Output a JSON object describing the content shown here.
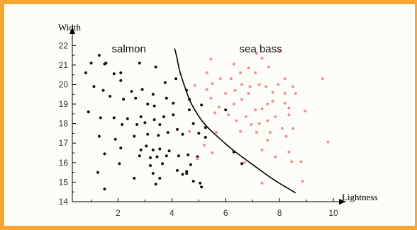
{
  "chart_data": {
    "type": "scatter",
    "title": "",
    "xlabel": "Lightness",
    "ylabel": "Width",
    "xlim": [
      0.3,
      10.0
    ],
    "ylim": [
      14,
      22.3
    ],
    "x_ticks": [
      2,
      4,
      6,
      8,
      10
    ],
    "y_ticks": [
      14,
      15,
      16,
      17,
      18,
      19,
      20,
      21,
      22
    ],
    "grid": false,
    "annotations": [
      {
        "text": "salmon",
        "x": 2.4,
        "y": 21.65
      },
      {
        "text": "sea bass",
        "x": 7.3,
        "y": 21.65
      }
    ],
    "colors": {
      "salmon": "#111111",
      "sea bass": "#f28f8f",
      "boundary": "#000000",
      "frame": "#f7a634"
    },
    "series": [
      {
        "name": "salmon",
        "points": [
          [
            1.3,
            21.5
          ],
          [
            1.0,
            21.1
          ],
          [
            1.5,
            21.05
          ],
          [
            1.55,
            21.1
          ],
          [
            0.8,
            20.6
          ],
          [
            1.85,
            20.55
          ],
          [
            2.1,
            20.6
          ],
          [
            2.8,
            21.1
          ],
          [
            3.4,
            20.9
          ],
          [
            3.75,
            20.1
          ],
          [
            2.1,
            20.2
          ],
          [
            2.2,
            19.25
          ],
          [
            2.5,
            19.65
          ],
          [
            2.9,
            19.75
          ],
          [
            2.65,
            19.3
          ],
          [
            3.1,
            19.0
          ],
          [
            3.3,
            19.5
          ],
          [
            3.35,
            18.9
          ],
          [
            4.05,
            19.05
          ],
          [
            3.8,
            19.3
          ],
          [
            1.1,
            19.9
          ],
          [
            1.45,
            19.7
          ],
          [
            1.7,
            19.4
          ],
          [
            0.9,
            18.6
          ],
          [
            1.35,
            18.3
          ],
          [
            1.85,
            18.3
          ],
          [
            2.35,
            18.25
          ],
          [
            2.85,
            18.35
          ],
          [
            2.7,
            17.95
          ],
          [
            3.0,
            18.05
          ],
          [
            2.15,
            17.95
          ],
          [
            3.35,
            18.2
          ],
          [
            3.7,
            18.35
          ],
          [
            4.05,
            18.45
          ],
          [
            3.55,
            17.95
          ],
          [
            4.2,
            17.7
          ],
          [
            4.4,
            17.45
          ],
          [
            3.85,
            17.55
          ],
          [
            3.5,
            17.4
          ],
          [
            3.1,
            17.45
          ],
          [
            2.6,
            17.35
          ],
          [
            1.3,
            17.35
          ],
          [
            1.9,
            17.2
          ],
          [
            2.1,
            16.75
          ],
          [
            2.85,
            16.65
          ],
          [
            3.05,
            16.85
          ],
          [
            3.3,
            16.65
          ],
          [
            3.55,
            16.7
          ],
          [
            3.9,
            16.6
          ],
          [
            3.8,
            16.35
          ],
          [
            4.25,
            16.35
          ],
          [
            4.6,
            16.4
          ],
          [
            4.95,
            16.3
          ],
          [
            3.2,
            16.25
          ],
          [
            3.45,
            16.3
          ],
          [
            2.8,
            16.35
          ],
          [
            1.5,
            16.45
          ],
          [
            2.05,
            15.95
          ],
          [
            3.2,
            15.85
          ],
          [
            3.65,
            15.95
          ],
          [
            4.7,
            15.9
          ],
          [
            4.55,
            15.55
          ],
          [
            4.8,
            15.05
          ],
          [
            5.1,
            14.75
          ],
          [
            3.3,
            15.45
          ],
          [
            3.55,
            15.2
          ],
          [
            2.6,
            15.2
          ],
          [
            3.4,
            14.9
          ],
          [
            1.25,
            15.5
          ],
          [
            1.5,
            14.65
          ],
          [
            5.05,
            14.95
          ],
          [
            4.55,
            15.45
          ],
          [
            4.15,
            20.3
          ],
          [
            4.55,
            19.7
          ],
          [
            4.65,
            19.25
          ],
          [
            4.65,
            18.7
          ],
          [
            5.1,
            18.95
          ],
          [
            6.0,
            18.7
          ],
          [
            4.8,
            18.0
          ],
          [
            5.25,
            17.8
          ],
          [
            5.0,
            17.5
          ],
          [
            5.25,
            17.3
          ],
          [
            6.3,
            16.55
          ],
          [
            6.6,
            15.95
          ],
          [
            4.4,
            15.4
          ],
          [
            4.2,
            15.6
          ]
        ]
      },
      {
        "name": "sea bass",
        "points": [
          [
            5.45,
            21.3
          ],
          [
            6.3,
            21.05
          ],
          [
            6.55,
            20.6
          ],
          [
            6.85,
            20.85
          ],
          [
            7.15,
            21.6
          ],
          [
            7.35,
            21.35
          ],
          [
            8.0,
            21.7
          ],
          [
            7.6,
            20.9
          ],
          [
            7.1,
            20.6
          ],
          [
            6.2,
            20.3
          ],
          [
            5.3,
            20.6
          ],
          [
            5.8,
            20.3
          ],
          [
            5.5,
            20.05
          ],
          [
            4.85,
            19.95
          ],
          [
            5.3,
            19.75
          ],
          [
            5.45,
            19.3
          ],
          [
            6.0,
            19.55
          ],
          [
            6.35,
            19.7
          ],
          [
            6.6,
            20.0
          ],
          [
            6.9,
            19.9
          ],
          [
            7.25,
            20.0
          ],
          [
            7.5,
            19.9
          ],
          [
            7.95,
            20.0
          ],
          [
            8.2,
            20.3
          ],
          [
            8.5,
            19.9
          ],
          [
            8.6,
            19.55
          ],
          [
            8.2,
            19.55
          ],
          [
            7.75,
            19.6
          ],
          [
            6.85,
            19.55
          ],
          [
            6.6,
            19.25
          ],
          [
            6.3,
            19.0
          ],
          [
            5.75,
            18.85
          ],
          [
            5.6,
            18.55
          ],
          [
            6.1,
            18.45
          ],
          [
            6.4,
            18.15
          ],
          [
            6.75,
            18.35
          ],
          [
            7.1,
            18.7
          ],
          [
            7.35,
            18.75
          ],
          [
            7.55,
            19.0
          ],
          [
            7.75,
            19.15
          ],
          [
            8.2,
            19.05
          ],
          [
            8.35,
            18.8
          ],
          [
            8.95,
            18.65
          ],
          [
            8.35,
            18.45
          ],
          [
            7.85,
            18.35
          ],
          [
            7.55,
            18.15
          ],
          [
            7.25,
            18.0
          ],
          [
            6.95,
            17.95
          ],
          [
            5.65,
            17.55
          ],
          [
            6.55,
            17.6
          ],
          [
            7.15,
            17.55
          ],
          [
            7.65,
            17.55
          ],
          [
            8.1,
            17.75
          ],
          [
            8.5,
            17.75
          ],
          [
            8.25,
            17.35
          ],
          [
            7.55,
            17.15
          ],
          [
            7.35,
            16.65
          ],
          [
            8.35,
            16.55
          ],
          [
            7.85,
            16.3
          ],
          [
            8.45,
            16.05
          ],
          [
            8.8,
            16.05
          ],
          [
            9.6,
            20.3
          ],
          [
            9.8,
            17.05
          ],
          [
            6.7,
            16.0
          ],
          [
            7.35,
            14.95
          ],
          [
            8.85,
            15.05
          ],
          [
            5.5,
            16.5
          ],
          [
            4.65,
            17.6
          ],
          [
            5.2,
            16.9
          ],
          [
            4.95,
            16.2
          ]
        ]
      }
    ],
    "boundary": [
      [
        4.1,
        21.85
      ],
      [
        4.15,
        21.6
      ],
      [
        4.2,
        21.3
      ],
      [
        4.25,
        20.9
      ],
      [
        4.35,
        20.4
      ],
      [
        4.5,
        19.8
      ],
      [
        4.65,
        19.2
      ],
      [
        4.85,
        18.7
      ],
      [
        5.1,
        18.15
      ],
      [
        5.4,
        17.7
      ],
      [
        5.8,
        17.2
      ],
      [
        6.3,
        16.6
      ],
      [
        6.8,
        16.1
      ],
      [
        7.3,
        15.6
      ],
      [
        7.8,
        15.1
      ],
      [
        8.6,
        14.45
      ]
    ]
  }
}
